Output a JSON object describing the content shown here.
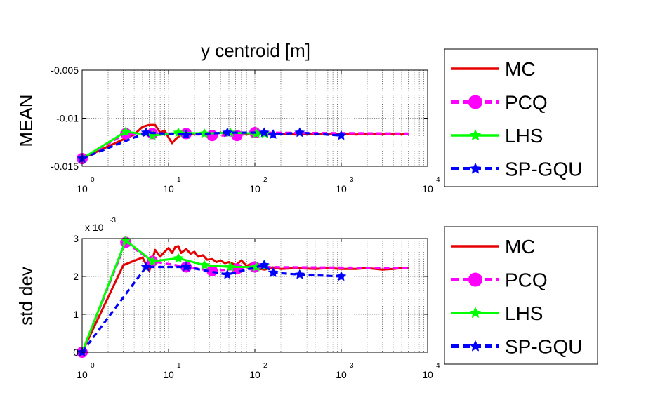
{
  "chart_data": [
    {
      "type": "line",
      "title": "y centroid [m]",
      "ylabel": "MEAN",
      "xscale": "log",
      "xlim": [
        1,
        10000
      ],
      "ylim": [
        -0.015,
        -0.005
      ],
      "yticks": [
        -0.015,
        -0.01,
        -0.005
      ],
      "ytick_labels": [
        "-0.015",
        "-0.01",
        "-0.005"
      ],
      "xticks": [
        1,
        10,
        100,
        1000,
        10000
      ],
      "xtick_labels": [
        {
          "base": "10",
          "exp": "0"
        },
        {
          "base": "10",
          "exp": "1"
        },
        {
          "base": "10",
          "exp": "2"
        },
        {
          "base": "10",
          "exp": "3"
        },
        {
          "base": "10",
          "exp": "4"
        }
      ],
      "grid": true,
      "legend_position": "right-outside",
      "series": [
        {
          "name": "MC",
          "color": "#e60000",
          "style": "solid",
          "marker": "none",
          "x": [
            1,
            3,
            4,
            5,
            6,
            7,
            8,
            9,
            10,
            11,
            12,
            14,
            16,
            18,
            20,
            25,
            30,
            40,
            50,
            60,
            80,
            100,
            150,
            200,
            300,
            500,
            700,
            1000,
            1500,
            2000,
            3000,
            4000,
            5000,
            6000
          ],
          "y": [
            -0.0142,
            -0.0122,
            -0.0117,
            -0.0109,
            -0.0107,
            -0.0107,
            -0.0115,
            -0.0113,
            -0.012,
            -0.0126,
            -0.0122,
            -0.0117,
            -0.0119,
            -0.0116,
            -0.0117,
            -0.0116,
            -0.0118,
            -0.0115,
            -0.0117,
            -0.0116,
            -0.0117,
            -0.0116,
            -0.0117,
            -0.0116,
            -0.0117,
            -0.0116,
            -0.0117,
            -0.0116,
            -0.0117,
            -0.0116,
            -0.0117,
            -0.0116,
            -0.0117,
            -0.0116
          ]
        },
        {
          "name": "PCQ",
          "color": "#ff00ff",
          "style": "dashed",
          "marker": "circle",
          "x": [
            1,
            3.2,
            6.5,
            16,
            32,
            62,
            100,
            6000
          ],
          "y": [
            -0.0142,
            -0.0116,
            -0.0116,
            -0.0116,
            -0.0118,
            -0.0118,
            -0.0115,
            -0.0116
          ]
        },
        {
          "name": "LHS",
          "color": "#00ff00",
          "style": "solid",
          "marker": "star",
          "x": [
            1,
            3.2,
            6.5,
            13,
            26,
            52,
            104,
            130
          ],
          "y": [
            -0.0142,
            -0.0114,
            -0.0118,
            -0.0115,
            -0.0116,
            -0.0115,
            -0.0116,
            -0.0116
          ]
        },
        {
          "name": "SP-GQU",
          "color": "#0000ff",
          "style": "dashed",
          "marker": "star",
          "x": [
            1,
            5.5,
            16,
            48,
            128,
            163,
            330,
            1000
          ],
          "y": [
            -0.0142,
            -0.0115,
            -0.0117,
            -0.0115,
            -0.0115,
            -0.0117,
            -0.0115,
            -0.0118
          ]
        }
      ]
    },
    {
      "type": "line",
      "title": "",
      "ylabel": "std dev",
      "xscale": "log",
      "xlim": [
        1,
        10000
      ],
      "ylim": [
        0,
        3
      ],
      "yticks": [
        0,
        1,
        2,
        3
      ],
      "ytick_labels": [
        "0",
        "1",
        "2",
        "3"
      ],
      "y_multiplier": {
        "base": "x 10",
        "exp": "-3"
      },
      "xticks": [
        1,
        10,
        100,
        1000,
        10000
      ],
      "xtick_labels": [
        {
          "base": "10",
          "exp": "0"
        },
        {
          "base": "10",
          "exp": "1"
        },
        {
          "base": "10",
          "exp": "2"
        },
        {
          "base": "10",
          "exp": "3"
        },
        {
          "base": "10",
          "exp": "4"
        }
      ],
      "grid": true,
      "legend_position": "right-outside",
      "series": [
        {
          "name": "MC",
          "color": "#e60000",
          "style": "solid",
          "marker": "none",
          "x": [
            1,
            3,
            5,
            6,
            7,
            8,
            9,
            10,
            11,
            12,
            13,
            14,
            16,
            18,
            20,
            22,
            25,
            28,
            32,
            36,
            40,
            45,
            50,
            60,
            70,
            80,
            90,
            100,
            130,
            160,
            200,
            300,
            500,
            700,
            1000,
            1500,
            2000,
            3000,
            4000,
            5000,
            6000
          ],
          "y": [
            0,
            2.3,
            2.5,
            2.15,
            2.7,
            2.52,
            2.65,
            2.75,
            2.62,
            2.78,
            2.8,
            2.62,
            2.72,
            2.6,
            2.65,
            2.52,
            2.56,
            2.44,
            2.46,
            2.38,
            2.42,
            2.35,
            2.38,
            2.3,
            2.42,
            2.28,
            2.33,
            2.22,
            2.18,
            2.24,
            2.2,
            2.22,
            2.2,
            2.22,
            2.2,
            2.2,
            2.22,
            2.18,
            2.2,
            2.22,
            2.22
          ]
        },
        {
          "name": "PCQ",
          "color": "#ff00ff",
          "style": "dashed",
          "marker": "circle",
          "x": [
            1,
            3.2,
            6.5,
            16,
            32,
            62,
            100,
            6000
          ],
          "y": [
            0,
            2.9,
            2.4,
            2.25,
            2.15,
            2.2,
            2.25,
            2.22
          ]
        },
        {
          "name": "LHS",
          "color": "#00ff00",
          "style": "solid",
          "marker": "star",
          "x": [
            1,
            3.2,
            6.5,
            13,
            26,
            52,
            104,
            130
          ],
          "y": [
            0,
            2.95,
            2.4,
            2.48,
            2.3,
            2.25,
            2.25,
            2.28
          ]
        },
        {
          "name": "SP-GQU",
          "color": "#0000ff",
          "style": "dashed",
          "marker": "star",
          "x": [
            1,
            5.5,
            16,
            48,
            128,
            163,
            330,
            1000
          ],
          "y": [
            0,
            2.25,
            2.25,
            2.05,
            2.3,
            2.1,
            2.05,
            2.0
          ]
        }
      ]
    }
  ]
}
